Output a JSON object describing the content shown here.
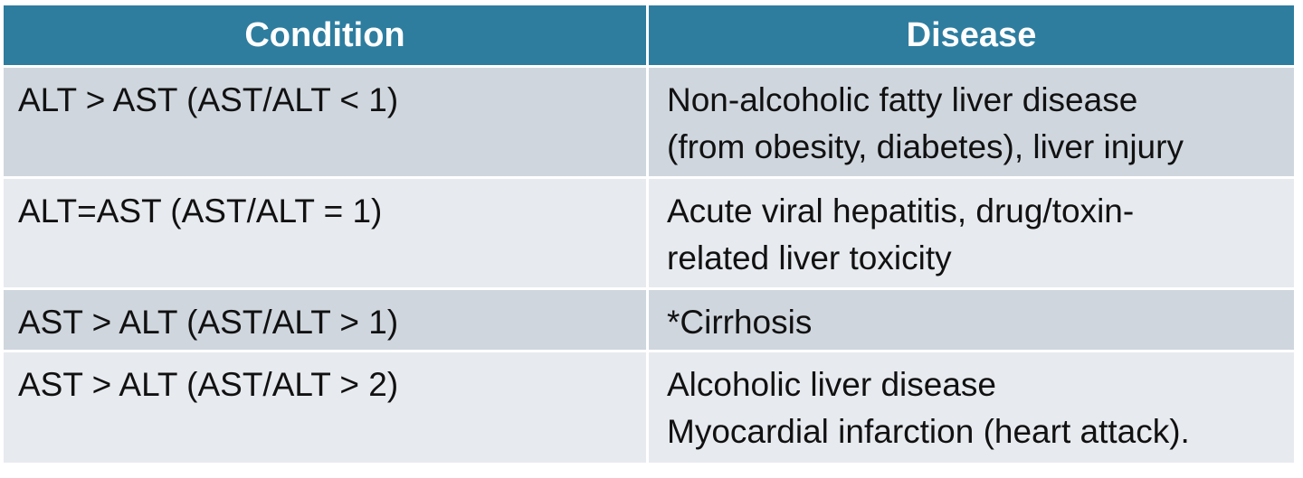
{
  "table": {
    "headers": [
      "Condition",
      "Disease"
    ],
    "rows": [
      {
        "condition": "ALT > AST (AST/ALT < 1)",
        "disease_lines": [
          "Non-alcoholic fatty liver disease",
          "(from obesity, diabetes), liver injury"
        ]
      },
      {
        "condition": "ALT=AST (AST/ALT = 1)",
        "disease_lines": [
          "Acute viral hepatitis, drug/toxin-",
          "related liver toxicity"
        ]
      },
      {
        "condition": "AST > ALT (AST/ALT > 1)",
        "disease_lines": [
          "*Cirrhosis"
        ]
      },
      {
        "condition": "AST > ALT (AST/ALT > 2)",
        "disease_lines": [
          "Alcoholic liver disease",
          "Myocardial infarction (heart attack)."
        ]
      }
    ]
  },
  "colors": {
    "header_bg": "#2e7d9f",
    "row_dark": "#cfd6de",
    "row_light": "#e7eaee"
  }
}
